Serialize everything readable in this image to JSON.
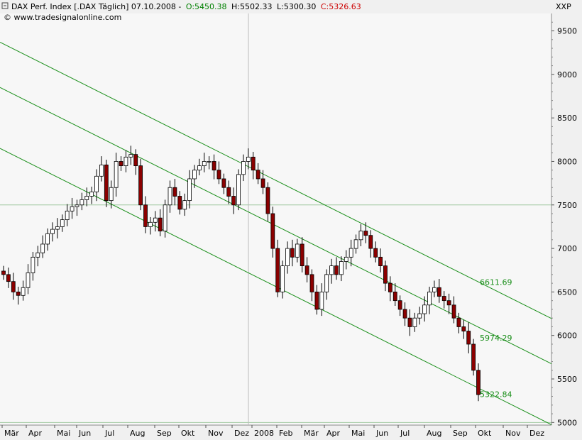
{
  "header": {
    "instrument": "DAX Perf. Index [.DAX  Täglich] 07.10.2008 -",
    "open": "O:5450.38",
    "high": "H:5502.33",
    "low": "L:5300.30",
    "close": "C:5326.63",
    "source": "© www.tradesignalonline.com",
    "xxp_label": "XXP"
  },
  "colors": {
    "background": "#f0f0f0",
    "plot": "#f7f7f7",
    "channel": "#1a8f1a",
    "up_candle": "#ffffff",
    "down_candle": "#8b0000",
    "open_text": "#008000",
    "close_text": "#cc0000"
  },
  "chart_data": {
    "type": "candlestick",
    "x_tick_labels": [
      "Mär",
      "Apr",
      "Mai",
      "Jun",
      "Jul",
      "Aug",
      "Sep",
      "Okt",
      "Nov",
      "Dez",
      "2008",
      "Feb",
      "Mär",
      "Apr",
      "Mai",
      "Jun",
      "Jul",
      "Aug",
      "Sep",
      "Okt",
      "Nov",
      "Dez"
    ],
    "x_range": [
      "2007-03-01",
      "2008-12-31"
    ],
    "y_ticks": [
      5000,
      5500,
      6000,
      6500,
      7000,
      7500,
      8000,
      8500,
      9000,
      9500
    ],
    "ylim": [
      4970,
      9700
    ],
    "grid": {
      "horizontal_at": [
        7500,
        5000
      ],
      "vertical_at": "2008"
    },
    "closes": [
      6700,
      6620,
      6500,
      6460,
      6550,
      6720,
      6900,
      6950,
      7050,
      7170,
      7220,
      7250,
      7330,
      7430,
      7480,
      7500,
      7560,
      7600,
      7650,
      7830,
      7960,
      7550,
      7700,
      8000,
      7950,
      8050,
      8080,
      7950,
      7500,
      7250,
      7300,
      7350,
      7200,
      7500,
      7700,
      7600,
      7450,
      7550,
      7800,
      7900,
      7950,
      8000,
      8000,
      7900,
      7800,
      7700,
      7600,
      7500,
      7850,
      8000,
      8050,
      7900,
      7800,
      7700,
      7400,
      7000,
      6500,
      6800,
      7000,
      6900,
      7050,
      6800,
      6700,
      6500,
      6300,
      6500,
      6700,
      6800,
      6700,
      6850,
      6900,
      7000,
      7100,
      7200,
      7150,
      7000,
      6900,
      6800,
      6600,
      6500,
      6400,
      6300,
      6200,
      6100,
      6200,
      6250,
      6350,
      6500,
      6550,
      6450,
      6400,
      6350,
      6200,
      6100,
      6050,
      5900,
      5600,
      5320
    ],
    "channel_lines": [
      {
        "label": "6611.69",
        "value": 6611.69,
        "start_value": 9370
      },
      {
        "label": "5974.29",
        "value": 5974.29,
        "start_value": 8850
      },
      {
        "label": "5322.84",
        "value": 5322.84,
        "start_value": 8150
      }
    ]
  }
}
